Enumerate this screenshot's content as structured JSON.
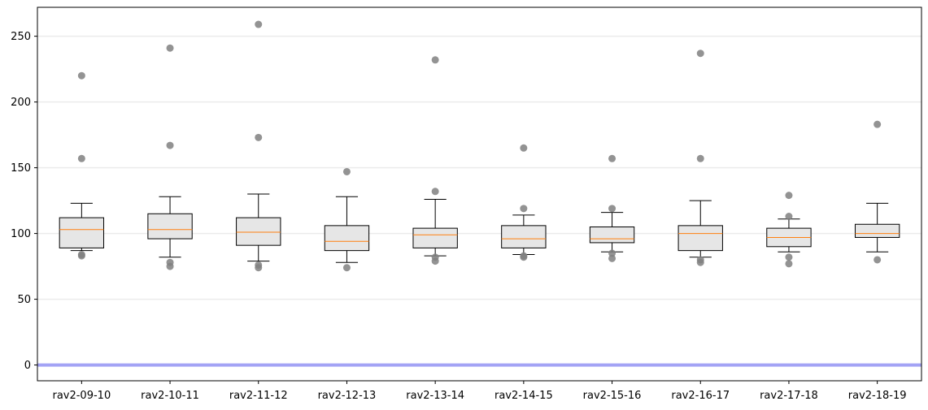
{
  "chart_data": {
    "type": "box",
    "title": "",
    "xlabel": "",
    "ylabel": "",
    "ylim": [
      -12,
      272
    ],
    "yticks": [
      0,
      50,
      100,
      150,
      200,
      250
    ],
    "grid": "horizontal",
    "reference_line": {
      "y": 0,
      "color": "#a3a3f5"
    },
    "colors": {
      "box_fill": "#e6e6e6",
      "median": "#ff7f0e",
      "outlier": "#808080",
      "axis": "#000000",
      "grid": "#ebebeb"
    },
    "categories": [
      "rav2-09-10",
      "rav2-10-11",
      "rav2-11-12",
      "rav2-12-13",
      "rav2-13-14",
      "rav2-14-15",
      "rav2-15-16",
      "rav2-16-17",
      "rav2-17-18",
      "rav2-18-19"
    ],
    "boxes": [
      {
        "whislo": 87,
        "q1": 89,
        "med": 103,
        "q3": 112,
        "whishi": 123,
        "fliers": [
          220,
          157,
          84,
          83
        ]
      },
      {
        "whislo": 82,
        "q1": 96,
        "med": 103,
        "q3": 115,
        "whishi": 128,
        "fliers": [
          241,
          167,
          78,
          75
        ]
      },
      {
        "whislo": 79,
        "q1": 91,
        "med": 101,
        "q3": 112,
        "whishi": 130,
        "fliers": [
          259,
          173,
          76,
          74
        ]
      },
      {
        "whislo": 78,
        "q1": 87,
        "med": 94,
        "q3": 106,
        "whishi": 128,
        "fliers": [
          147,
          74
        ]
      },
      {
        "whislo": 83,
        "q1": 89,
        "med": 99,
        "q3": 104,
        "whishi": 126,
        "fliers": [
          232,
          132,
          82,
          79
        ]
      },
      {
        "whislo": 84,
        "q1": 89,
        "med": 96,
        "q3": 106,
        "whishi": 114,
        "fliers": [
          165,
          119,
          83,
          82
        ]
      },
      {
        "whislo": 86,
        "q1": 93,
        "med": 96,
        "q3": 105,
        "whishi": 116,
        "fliers": [
          157,
          119,
          85,
          81
        ]
      },
      {
        "whislo": 82,
        "q1": 87,
        "med": 100,
        "q3": 106,
        "whishi": 125,
        "fliers": [
          237,
          157,
          80,
          78
        ]
      },
      {
        "whislo": 86,
        "q1": 90,
        "med": 97,
        "q3": 104,
        "whishi": 111,
        "fliers": [
          129,
          113,
          82,
          77
        ]
      },
      {
        "whislo": 86,
        "q1": 97,
        "med": 100,
        "q3": 107,
        "whishi": 123,
        "fliers": [
          183,
          80
        ]
      }
    ]
  }
}
